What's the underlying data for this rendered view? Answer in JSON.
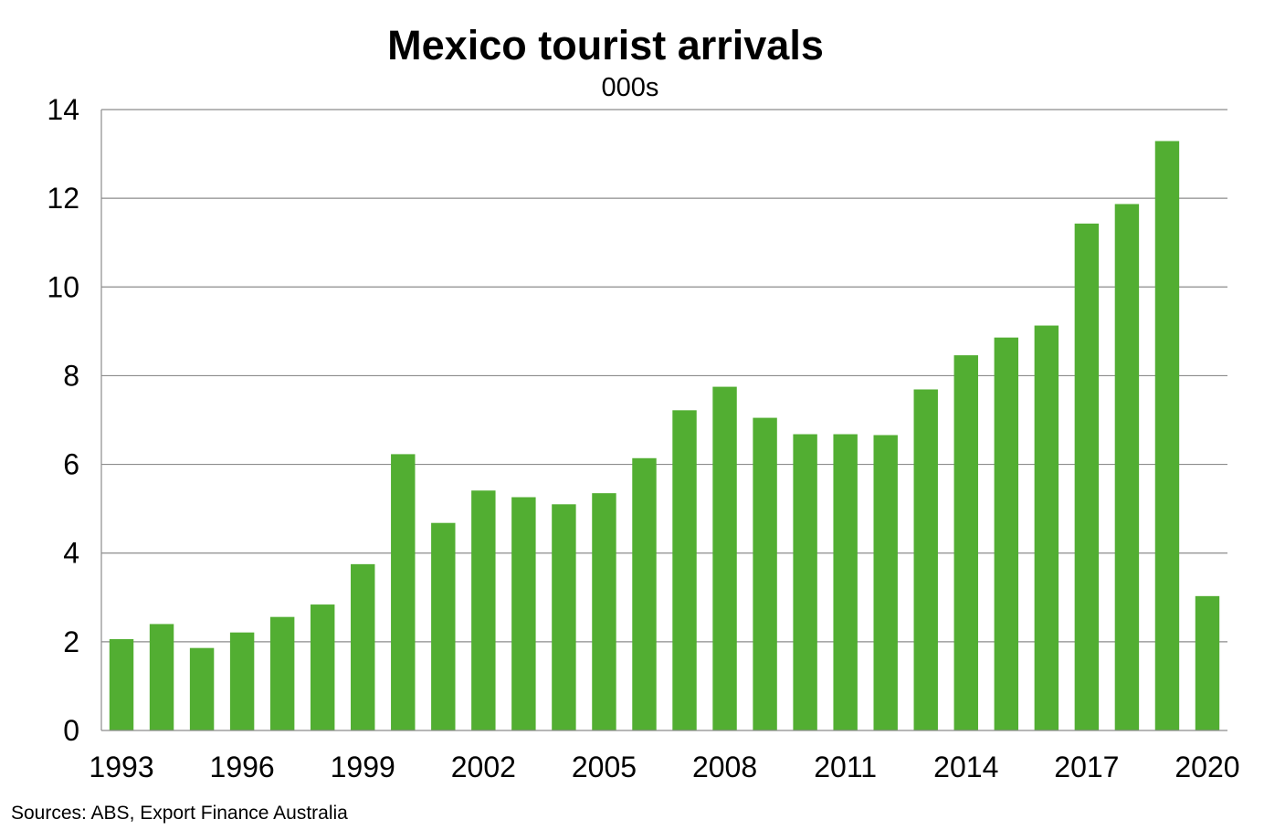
{
  "chart_data": {
    "type": "bar",
    "title": "Mexico tourist arrivals",
    "subtitle": "000s",
    "xlabel": "",
    "ylabel": "",
    "categories": [
      "1993",
      "1994",
      "1995",
      "1996",
      "1997",
      "1998",
      "1999",
      "2000",
      "2001",
      "2002",
      "2003",
      "2004",
      "2005",
      "2006",
      "2007",
      "2008",
      "2009",
      "2010",
      "2011",
      "2012",
      "2013",
      "2014",
      "2015",
      "2016",
      "2017",
      "2018",
      "2019",
      "2020"
    ],
    "x_tick_labels": [
      "1993",
      "1996",
      "1999",
      "2002",
      "2005",
      "2008",
      "2011",
      "2014",
      "2017",
      "2020"
    ],
    "values": [
      2.06,
      2.4,
      1.86,
      2.21,
      2.56,
      2.84,
      3.75,
      6.23,
      4.68,
      5.41,
      5.26,
      5.1,
      5.35,
      6.14,
      7.22,
      7.75,
      7.05,
      6.68,
      6.68,
      6.66,
      7.69,
      8.46,
      8.86,
      9.13,
      11.43,
      11.87,
      13.29,
      3.03
    ],
    "ylim": [
      0,
      14
    ],
    "yticks": [
      0,
      2,
      4,
      6,
      8,
      10,
      12,
      14
    ],
    "grid": true,
    "legend": "none",
    "bar_color": "#52ae32",
    "grid_color": "#8c8c8c"
  },
  "source": "Sources: ABS, Export Finance Australia"
}
